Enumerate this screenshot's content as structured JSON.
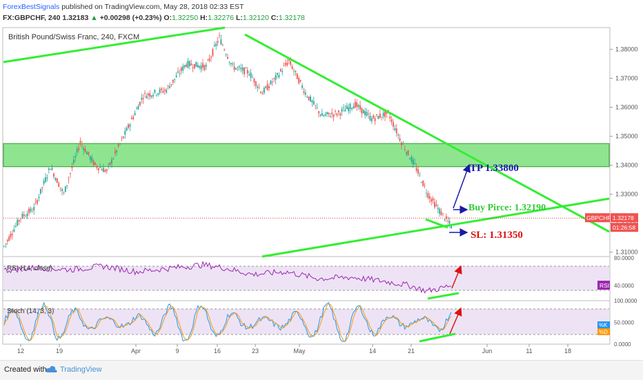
{
  "header": {
    "brand": "ForexBestSignals",
    "published": "published on TradingView.com, May 28, 2018 02:33 EST",
    "symbol_line": "FX:GBPCHF, 240",
    "last": "1.32183",
    "change": "+0.00298 (+0.23%)",
    "o_label": "O:",
    "o_value": "1.32250",
    "h_label": "H:",
    "h_value": "1.32276",
    "l_label": "L:",
    "l_value": "1.32120",
    "c_label": "C:",
    "c_value": "1.32178"
  },
  "footer": {
    "created_with": "Created with",
    "brand": "TradingView"
  },
  "colors": {
    "up": "#26a69a",
    "down": "#ef5350",
    "trendline": "#33ee33",
    "zone": "#7be07b",
    "tp": "#1a1aaa",
    "buy": "#33cc33",
    "sl": "#dd1111",
    "rsi": "#9c27b0",
    "stoch_k": "#2196f3",
    "stoch_d": "#ff9800"
  },
  "chart_data": [
    {
      "type": "candlestick",
      "title": "British Pound/Swiss Franc, 240, FXCM",
      "y_ticks": [
        "1.38000",
        "1.37000",
        "1.36000",
        "1.35000",
        "1.34000",
        "1.33000",
        "1.32000",
        "1.31000"
      ],
      "ylim": [
        1.3085,
        1.3875
      ],
      "x_ticks": [
        "12",
        "19",
        "Apr",
        "9",
        "16",
        "23",
        "May",
        "14",
        "21",
        "Jun",
        "11",
        "18"
      ],
      "price_label": "GBPCHF",
      "price_value": "1.32178",
      "countdown": "01:26:58",
      "last_price": 1.32178,
      "supply_zone": {
        "from": 1.3395,
        "to": 1.3475
      },
      "annotations": {
        "tp": "TP 1.33800",
        "buy": "Buy Pirce: 1.32190",
        "sl": "SL: 1.31350"
      },
      "path": [
        [
          0,
          1.312
        ],
        [
          10,
          1.322
        ],
        [
          18,
          1.325
        ],
        [
          28,
          1.3395
        ],
        [
          36,
          1.33
        ],
        [
          46,
          1.348
        ],
        [
          55,
          1.34
        ],
        [
          62,
          1.338
        ],
        [
          74,
          1.352
        ],
        [
          84,
          1.364
        ],
        [
          98,
          1.366
        ],
        [
          110,
          1.375
        ],
        [
          122,
          1.374
        ],
        [
          130,
          1.384
        ],
        [
          138,
          1.374
        ],
        [
          148,
          1.372
        ],
        [
          156,
          1.365
        ],
        [
          164,
          1.37
        ],
        [
          172,
          1.376
        ],
        [
          182,
          1.365
        ],
        [
          192,
          1.357
        ],
        [
          202,
          1.358
        ],
        [
          212,
          1.361
        ],
        [
          222,
          1.356
        ],
        [
          232,
          1.358
        ],
        [
          240,
          1.348
        ],
        [
          248,
          1.34
        ],
        [
          256,
          1.33
        ],
        [
          262,
          1.325
        ],
        [
          270,
          1.319
        ]
      ]
    },
    {
      "type": "line",
      "title": "RSI (14, close)",
      "y_ticks": [
        "80.0000",
        "40.0000"
      ],
      "ylim": [
        18,
        82
      ],
      "badge": "RSI",
      "last_value": 40,
      "path": [
        [
          0,
          62
        ],
        [
          20,
          66
        ],
        [
          40,
          63
        ],
        [
          60,
          68
        ],
        [
          80,
          60
        ],
        [
          100,
          65
        ],
        [
          120,
          70
        ],
        [
          132,
          66
        ],
        [
          150,
          56
        ],
        [
          170,
          60
        ],
        [
          190,
          50
        ],
        [
          210,
          52
        ],
        [
          230,
          46
        ],
        [
          245,
          40
        ],
        [
          255,
          32
        ],
        [
          262,
          35
        ],
        [
          270,
          40
        ]
      ]
    },
    {
      "type": "line",
      "title": "Stoch (14, 3, 3)",
      "y_ticks": [
        "100.0000",
        "50.0000",
        "0.0000"
      ],
      "ylim": [
        0,
        100
      ],
      "badge_k": "%K",
      "badge_d": "%D",
      "k_last": 50,
      "d_last": 28
    }
  ]
}
